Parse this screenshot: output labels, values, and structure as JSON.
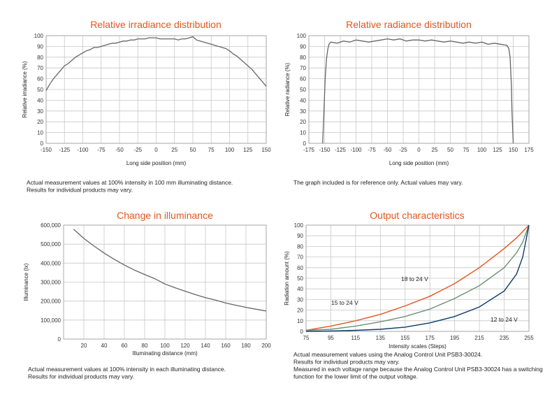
{
  "chart_data": [
    {
      "type": "line",
      "title": "Relative irradiance distribution",
      "xlabel": "Long side position (mm)",
      "ylabel": "Relative irradiance (%)",
      "xlim": [
        -150,
        150
      ],
      "ylim": [
        0,
        100
      ],
      "xticks": [
        -150,
        -125,
        -100,
        -75,
        -50,
        -25,
        0,
        25,
        50,
        75,
        100,
        125,
        150
      ],
      "yticks": [
        0,
        10,
        20,
        30,
        40,
        50,
        60,
        70,
        80,
        90,
        100
      ],
      "grid": true,
      "line_color": "#666666",
      "x": [
        -150,
        -145,
        -140,
        -135,
        -130,
        -125,
        -120,
        -115,
        -110,
        -105,
        -100,
        -95,
        -90,
        -85,
        -80,
        -75,
        -70,
        -65,
        -60,
        -55,
        -50,
        -45,
        -40,
        -35,
        -30,
        -25,
        -20,
        -15,
        -10,
        -5,
        0,
        5,
        10,
        15,
        20,
        25,
        30,
        35,
        40,
        45,
        50,
        55,
        60,
        65,
        70,
        75,
        80,
        85,
        90,
        95,
        100,
        105,
        110,
        115,
        120,
        125,
        130,
        135,
        140,
        145,
        150
      ],
      "y": [
        49,
        55,
        60,
        64,
        68,
        72,
        74,
        77,
        80,
        82,
        84,
        86,
        87,
        89,
        89,
        90,
        91,
        92,
        93,
        93,
        94,
        95,
        95,
        96,
        96,
        97,
        97,
        97,
        98,
        98,
        98,
        97,
        97,
        97,
        97,
        97,
        96,
        97,
        97,
        98,
        99,
        96,
        95,
        94,
        93,
        92,
        91,
        90,
        89,
        88,
        86,
        83,
        81,
        78,
        75,
        72,
        69,
        65,
        61,
        57,
        53
      ],
      "note": [
        "Actual measurement values at 100% intensity in 100 mm illuminating distance.",
        "Results for individual products may vary."
      ]
    },
    {
      "type": "line",
      "title": "Relative radiance distribution",
      "xlabel": "Long side position (mm)",
      "ylabel": "Relative radiance (%)",
      "xlim": [
        -175,
        175
      ],
      "ylim": [
        0,
        100
      ],
      "xticks": [
        -175,
        -150,
        -125,
        -100,
        -75,
        -50,
        -25,
        0,
        25,
        50,
        75,
        100,
        125,
        150,
        175
      ],
      "yticks": [
        0,
        10,
        20,
        30,
        40,
        50,
        60,
        70,
        80,
        90,
        100
      ],
      "grid": true,
      "line_color": "#666666",
      "x": [
        -153,
        -151,
        -149,
        -147,
        -145,
        -143,
        -140,
        -130,
        -120,
        -110,
        -100,
        -90,
        -80,
        -70,
        -60,
        -50,
        -40,
        -30,
        -20,
        -10,
        0,
        10,
        20,
        30,
        40,
        50,
        60,
        70,
        80,
        90,
        100,
        110,
        120,
        130,
        140,
        143,
        145,
        147,
        148,
        150
      ],
      "y": [
        0,
        30,
        60,
        78,
        87,
        92,
        94,
        93,
        95,
        94,
        96,
        95,
        94,
        95,
        96,
        97,
        96,
        97,
        95,
        96,
        96,
        95,
        96,
        95,
        94,
        95,
        94,
        93,
        94,
        93,
        94,
        92,
        93,
        92,
        91,
        88,
        80,
        55,
        30,
        0
      ],
      "note": [
        "The graph included is for reference only. Actual values may vary."
      ]
    },
    {
      "type": "line",
      "title": "Change in illuminance",
      "xlabel": "Illuminating distance (mm)",
      "ylabel": "Illuminance (lx)",
      "xlim": [
        0,
        200
      ],
      "ylim": [
        0,
        600000
      ],
      "xticks": [
        20,
        40,
        60,
        80,
        100,
        120,
        140,
        160,
        180,
        200
      ],
      "yticks": [
        "0",
        "100,000",
        "200,000",
        "300,000",
        "400,000",
        "500,000",
        "600,000"
      ],
      "grid": true,
      "line_color": "#666666",
      "x": [
        10,
        20,
        30,
        40,
        50,
        60,
        70,
        80,
        90,
        100,
        110,
        120,
        130,
        140,
        150,
        160,
        170,
        180,
        190,
        200
      ],
      "y": [
        578000,
        530000,
        490000,
        453000,
        420000,
        390000,
        363000,
        340000,
        318000,
        290000,
        270000,
        252000,
        234000,
        218000,
        205000,
        190000,
        178000,
        167000,
        157000,
        148000
      ],
      "note": [
        "Actual measurement values at 100% intensity in each illuminating distance.",
        "Results for individual products may vary."
      ]
    },
    {
      "type": "line",
      "title": "Output characteristics",
      "xlabel": "Intensity scales (Steps)",
      "ylabel": "Radiation amount (%)",
      "xlim": [
        75,
        255
      ],
      "ylim": [
        0,
        100
      ],
      "xticks": [
        75,
        95,
        115,
        135,
        155,
        175,
        195,
        215,
        235,
        255
      ],
      "yticks": [
        0,
        10,
        20,
        30,
        40,
        50,
        60,
        70,
        80,
        90,
        100
      ],
      "grid": true,
      "x": [
        75,
        95,
        115,
        135,
        155,
        175,
        195,
        215,
        235,
        245,
        250,
        255
      ],
      "series": [
        {
          "name": "18 to 24 V",
          "color": "#e2561c",
          "y": [
            1,
            5,
            10,
            16,
            24,
            33,
            45,
            60,
            78,
            88,
            94,
            100
          ]
        },
        {
          "name": "15 to 24 V",
          "color": "#6f8f78",
          "y": [
            1,
            2,
            5,
            9,
            14,
            21,
            31,
            43,
            60,
            74,
            84,
            100
          ]
        },
        {
          "name": "12 to 24 V",
          "color": "#0a3d6b",
          "y": [
            0,
            0.3,
            1,
            2,
            4,
            8,
            14,
            23,
            38,
            54,
            70,
            100
          ]
        }
      ],
      "note": [
        "Actual measurement values using the Analog Control Unit PSB3-30024.",
        "Results for individual products may vary.",
        "Measured in each voltage range because the Analog Control Unit PSB3-30024 has a switching",
        "function for the lower limit of the output voltage."
      ]
    }
  ]
}
